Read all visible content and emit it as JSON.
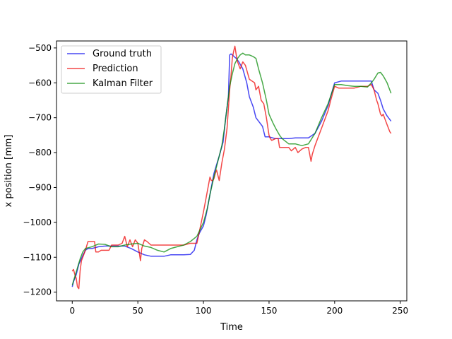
{
  "chart_data": {
    "type": "line",
    "xlabel": "Time",
    "ylabel": "x position [mm]",
    "xlim": [
      -12,
      255
    ],
    "ylim": [
      -1225,
      -480
    ],
    "x_ticks": [
      0,
      50,
      100,
      150,
      200,
      250
    ],
    "x_tick_labels": [
      "0",
      "50",
      "100",
      "150",
      "200",
      "250"
    ],
    "y_ticks": [
      -1200,
      -1100,
      -1000,
      -900,
      -800,
      -700,
      -600,
      -500
    ],
    "y_tick_labels": [
      "−1200",
      "−1100",
      "−1000",
      "−900",
      "−800",
      "−700",
      "−600",
      "−500"
    ],
    "grid": false,
    "legend_position": "upper-left",
    "series": [
      {
        "name": "Ground truth",
        "color": "#0000ee",
        "x": [
          0,
          1,
          3,
          5,
          8,
          10,
          12,
          15,
          20,
          25,
          30,
          35,
          40,
          45,
          50,
          55,
          60,
          65,
          70,
          75,
          80,
          85,
          90,
          93,
          95,
          97,
          100,
          102,
          105,
          108,
          110,
          112,
          115,
          117,
          119,
          120,
          121,
          122,
          125,
          127,
          130,
          133,
          135,
          138,
          140,
          142,
          145,
          147,
          150,
          153,
          155,
          160,
          165,
          170,
          175,
          180,
          185,
          190,
          195,
          200,
          205,
          210,
          215,
          220,
          225,
          228,
          230,
          233,
          235,
          237,
          240,
          243
        ],
        "y": [
          -1185,
          -1170,
          -1150,
          -1120,
          -1095,
          -1080,
          -1075,
          -1075,
          -1070,
          -1068,
          -1068,
          -1068,
          -1068,
          -1075,
          -1085,
          -1093,
          -1097,
          -1097,
          -1097,
          -1093,
          -1093,
          -1093,
          -1092,
          -1080,
          -1050,
          -1030,
          -1010,
          -980,
          -920,
          -860,
          -835,
          -810,
          -770,
          -700,
          -640,
          -520,
          -517,
          -520,
          -530,
          -540,
          -560,
          -600,
          -640,
          -670,
          -700,
          -710,
          -725,
          -755,
          -755,
          -758,
          -760,
          -760,
          -760,
          -758,
          -758,
          -758,
          -745,
          -710,
          -665,
          -600,
          -595,
          -595,
          -595,
          -595,
          -595,
          -595,
          -620,
          -630,
          -650,
          -675,
          -695,
          -710
        ]
      },
      {
        "name": "Prediction",
        "color": "#ee0000",
        "x": [
          0,
          1,
          2,
          3,
          4,
          5,
          6,
          7,
          8,
          10,
          12,
          15,
          17,
          18,
          20,
          22,
          25,
          28,
          30,
          35,
          38,
          40,
          42,
          44,
          46,
          48,
          50,
          52,
          53,
          55,
          57,
          60,
          65,
          70,
          75,
          80,
          85,
          90,
          95,
          100,
          102,
          105,
          106,
          107,
          108,
          109,
          110,
          112,
          114,
          116,
          118,
          120,
          121,
          122,
          123,
          124,
          125,
          126,
          128,
          130,
          132,
          135,
          137,
          139,
          140,
          142,
          144,
          146,
          148,
          150,
          151,
          152,
          155,
          157,
          158,
          160,
          163,
          165,
          167,
          170,
          172,
          175,
          178,
          180,
          182,
          183,
          185,
          187,
          190,
          192,
          195,
          197,
          200,
          203,
          205,
          210,
          215,
          220,
          225,
          228,
          230,
          232,
          233,
          235,
          236,
          237,
          238,
          240,
          242,
          243
        ],
        "y": [
          -1140,
          -1135,
          -1150,
          -1160,
          -1185,
          -1190,
          -1140,
          -1110,
          -1100,
          -1080,
          -1055,
          -1055,
          -1055,
          -1085,
          -1085,
          -1080,
          -1080,
          -1080,
          -1065,
          -1065,
          -1060,
          -1040,
          -1070,
          -1050,
          -1070,
          -1050,
          -1060,
          -1110,
          -1075,
          -1050,
          -1055,
          -1065,
          -1065,
          -1065,
          -1065,
          -1065,
          -1065,
          -1060,
          -1060,
          -970,
          -930,
          -870,
          -880,
          -880,
          -875,
          -860,
          -850,
          -880,
          -830,
          -790,
          -730,
          -620,
          -580,
          -530,
          -510,
          -495,
          -520,
          -540,
          -560,
          -540,
          -550,
          -590,
          -595,
          -600,
          -620,
          -610,
          -650,
          -660,
          -700,
          -750,
          -760,
          -765,
          -760,
          -760,
          -785,
          -785,
          -785,
          -785,
          -795,
          -785,
          -800,
          -790,
          -785,
          -785,
          -825,
          -805,
          -780,
          -760,
          -730,
          -710,
          -680,
          -650,
          -610,
          -615,
          -615,
          -615,
          -615,
          -610,
          -610,
          -605,
          -620,
          -650,
          -660,
          -690,
          -695,
          -690,
          -700,
          -720,
          -740,
          -745
        ]
      },
      {
        "name": "Kalman Filter",
        "color": "#008800",
        "x": [
          0,
          2,
          4,
          6,
          8,
          10,
          12,
          15,
          18,
          20,
          25,
          30,
          35,
          40,
          45,
          50,
          55,
          60,
          65,
          70,
          75,
          80,
          85,
          90,
          95,
          100,
          103,
          105,
          108,
          110,
          112,
          114,
          116,
          118,
          120,
          122,
          124,
          126,
          128,
          130,
          132,
          135,
          138,
          140,
          142,
          145,
          148,
          150,
          153,
          155,
          158,
          160,
          165,
          170,
          175,
          180,
          185,
          190,
          195,
          200,
          205,
          210,
          215,
          220,
          225,
          228,
          230,
          233,
          235,
          237,
          240,
          243
        ],
        "y": [
          -1180,
          -1155,
          -1130,
          -1105,
          -1085,
          -1075,
          -1073,
          -1070,
          -1065,
          -1062,
          -1063,
          -1070,
          -1070,
          -1065,
          -1062,
          -1060,
          -1068,
          -1072,
          -1080,
          -1085,
          -1075,
          -1070,
          -1065,
          -1055,
          -1040,
          -1000,
          -960,
          -920,
          -870,
          -840,
          -810,
          -780,
          -730,
          -670,
          -610,
          -575,
          -545,
          -530,
          -520,
          -515,
          -520,
          -520,
          -525,
          -530,
          -560,
          -600,
          -650,
          -690,
          -715,
          -730,
          -750,
          -760,
          -775,
          -775,
          -780,
          -775,
          -745,
          -700,
          -660,
          -605,
          -605,
          -608,
          -610,
          -610,
          -612,
          -600,
          -590,
          -572,
          -570,
          -580,
          -600,
          -630
        ]
      }
    ]
  }
}
